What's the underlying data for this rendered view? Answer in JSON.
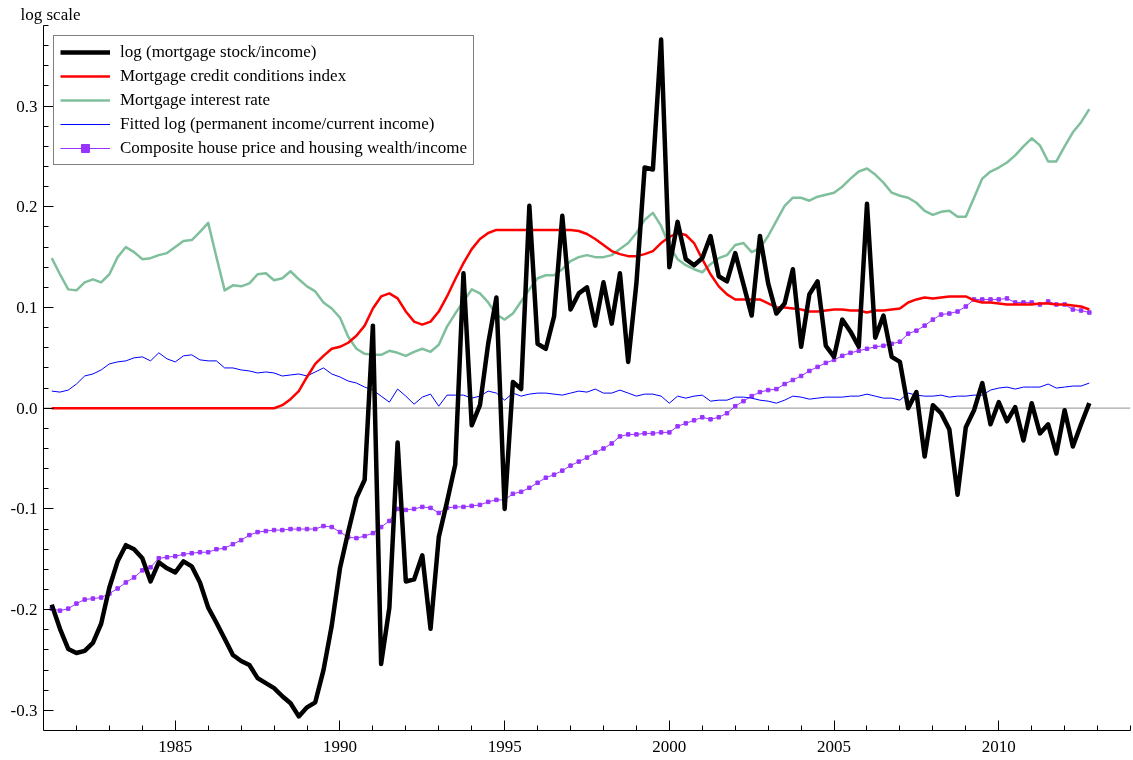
{
  "chart_data": {
    "type": "line",
    "ylabel": "log scale",
    "legend": "top left",
    "xlim": [
      1981,
      2014
    ],
    "ylim": [
      -0.32,
      0.38
    ],
    "xticks": [
      {
        "value": 1982,
        "label": null
      },
      {
        "value": 1983,
        "label": null
      },
      {
        "value": 1984,
        "label": null
      },
      1985,
      {
        "value": 1986,
        "label": null
      },
      {
        "value": 1987,
        "label": null
      },
      {
        "value": 1988,
        "label": null
      },
      {
        "value": 1989,
        "label": null
      },
      1990,
      {
        "value": 1991,
        "label": null
      },
      {
        "value": 1992,
        "label": null
      },
      {
        "value": 1993,
        "label": null
      },
      {
        "value": 1994,
        "label": null
      },
      1995,
      {
        "value": 1996,
        "label": null
      },
      {
        "value": 1997,
        "label": null
      },
      {
        "value": 1998,
        "label": null
      },
      {
        "value": 1999,
        "label": null
      },
      2000,
      {
        "value": 2001,
        "label": null
      },
      {
        "value": 2002,
        "label": null
      },
      {
        "value": 2003,
        "label": null
      },
      {
        "value": 2004,
        "label": null
      },
      2005,
      {
        "value": 2006,
        "label": null
      },
      {
        "value": 2007,
        "label": null
      },
      {
        "value": 2008,
        "label": null
      },
      {
        "value": 2009,
        "label": null
      },
      2010,
      {
        "value": 2011,
        "label": null
      },
      {
        "value": 2012,
        "label": null
      },
      {
        "value": 2013,
        "label": null
      },
      {
        "value": 2014,
        "label": null
      }
    ],
    "yticks": [
      -0.3,
      {
        "value": -0.28,
        "label": null
      },
      {
        "value": -0.26,
        "label": null
      },
      {
        "value": -0.24,
        "label": null
      },
      {
        "value": -0.22,
        "label": null
      },
      -0.2,
      {
        "value": -0.18,
        "label": null
      },
      {
        "value": -0.16,
        "label": null
      },
      {
        "value": -0.14,
        "label": null
      },
      {
        "value": -0.12,
        "label": null
      },
      -0.1,
      {
        "value": -0.08,
        "label": null
      },
      {
        "value": -0.06,
        "label": null
      },
      {
        "value": -0.04,
        "label": null
      },
      {
        "value": -0.02,
        "label": null
      },
      {
        "value": 0,
        "label": "0.0"
      },
      {
        "value": 0.02,
        "label": null
      },
      {
        "value": 0.04,
        "label": null
      },
      {
        "value": 0.06,
        "label": null
      },
      {
        "value": 0.08,
        "label": null
      },
      0.1,
      {
        "value": 0.12,
        "label": null
      },
      {
        "value": 0.14,
        "label": null
      },
      {
        "value": 0.16,
        "label": null
      },
      {
        "value": 0.18,
        "label": null
      },
      0.2,
      {
        "value": 0.22,
        "label": null
      },
      {
        "value": 0.24,
        "label": null
      },
      {
        "value": 0.26,
        "label": null
      },
      {
        "value": 0.28,
        "label": null
      },
      0.3,
      {
        "value": 0.32,
        "label": null
      },
      {
        "value": 0.34,
        "label": null
      },
      {
        "value": 0.36,
        "label": null
      },
      {
        "value": 0.38,
        "label": null
      }
    ],
    "ref_lines": [
      {
        "axis": "y",
        "value": 0,
        "color": "#a6a6a6"
      }
    ],
    "x": [
      1981.25,
      1981.5,
      1981.75,
      1982,
      1982.25,
      1982.5,
      1982.75,
      1983,
      1983.25,
      1983.5,
      1983.75,
      1984,
      1984.25,
      1984.5,
      1984.75,
      1985,
      1985.25,
      1985.5,
      1985.75,
      1986,
      1986.25,
      1986.5,
      1986.75,
      1987,
      1987.25,
      1987.5,
      1987.75,
      1988,
      1988.25,
      1988.5,
      1988.75,
      1989,
      1989.25,
      1989.5,
      1989.75,
      1990,
      1990.25,
      1990.5,
      1990.75,
      1991,
      1991.25,
      1991.5,
      1991.75,
      1992,
      1992.25,
      1992.5,
      1992.75,
      1993,
      1993.25,
      1993.5,
      1993.75,
      1994,
      1994.25,
      1994.5,
      1994.75,
      1995,
      1995.25,
      1995.5,
      1995.75,
      1996,
      1996.25,
      1996.5,
      1996.75,
      1997,
      1997.25,
      1997.5,
      1997.75,
      1998,
      1998.25,
      1998.5,
      1998.75,
      1999,
      1999.25,
      1999.5,
      1999.75,
      2000,
      2000.25,
      2000.5,
      2000.75,
      2001,
      2001.25,
      2001.5,
      2001.75,
      2002,
      2002.25,
      2002.5,
      2002.75,
      2003,
      2003.25,
      2003.5,
      2003.75,
      2004,
      2004.25,
      2004.5,
      2004.75,
      2005,
      2005.25,
      2005.5,
      2005.75,
      2006,
      2006.25,
      2006.5,
      2006.75,
      2007,
      2007.25,
      2007.5,
      2007.75,
      2008,
      2008.25,
      2008.5,
      2008.75,
      2009,
      2009.25,
      2009.5,
      2009.75,
      2010,
      2010.25,
      2010.5,
      2010.75,
      2011,
      2011.25,
      2011.5,
      2011.75,
      2012,
      2012.25,
      2012.5,
      2012.75
    ],
    "series": [
      {
        "name": "log (mortgage stock/income)",
        "color": "#000000",
        "values": [
          -0.195,
          -0.219,
          -0.239,
          -0.243,
          -0.241,
          -0.233,
          -0.214,
          -0.178,
          -0.152,
          -0.136,
          -0.14,
          -0.149,
          -0.172,
          -0.153,
          -0.159,
          -0.163,
          -0.152,
          -0.157,
          -0.173,
          -0.198,
          -0.213,
          -0.229,
          -0.245,
          -0.251,
          -0.255,
          -0.268,
          -0.273,
          -0.278,
          -0.286,
          -0.293,
          -0.306,
          -0.297,
          -0.292,
          -0.26,
          -0.216,
          -0.159,
          -0.123,
          -0.089,
          -0.071,
          0.082,
          -0.254,
          -0.198,
          -0.034,
          -0.172,
          -0.17,
          -0.146,
          -0.219,
          -0.128,
          -0.093,
          -0.056,
          0.134,
          -0.017,
          0.003,
          0.064,
          0.11,
          -0.1,
          0.026,
          0.019,
          0.201,
          0.064,
          0.059,
          0.091,
          0.191,
          0.098,
          0.114,
          0.12,
          0.082,
          0.125,
          0.084,
          0.134,
          0.046,
          0.124,
          0.239,
          0.237,
          0.366,
          0.14,
          0.185,
          0.148,
          0.142,
          0.149,
          0.171,
          0.131,
          0.126,
          0.154,
          0.123,
          0.092,
          0.171,
          0.124,
          0.094,
          0.104,
          0.138,
          0.061,
          0.113,
          0.126,
          0.062,
          0.051,
          0.088,
          0.076,
          0.061,
          0.203,
          0.07,
          0.092,
          0.051,
          0.046,
          0.0,
          0.016,
          -0.048,
          0.003,
          -0.005,
          -0.021,
          -0.086,
          -0.019,
          -0.002,
          0.025,
          -0.016,
          0.006,
          -0.013,
          0.001,
          -0.032,
          0.005,
          -0.025,
          -0.016,
          -0.045,
          -0.002,
          -0.038,
          -0.016,
          0.005
        ]
      },
      {
        "name": "Mortgage credit conditions index",
        "color": "#ff0000",
        "values": [
          0,
          0,
          0,
          0,
          0,
          0,
          0,
          0,
          0,
          0,
          0,
          0,
          0,
          0,
          0,
          0,
          0,
          0,
          0,
          0,
          0,
          0,
          0,
          0,
          0,
          0,
          0,
          0,
          0.003,
          0.009,
          0.017,
          0.031,
          0.044,
          0.052,
          0.059,
          0.061,
          0.065,
          0.072,
          0.082,
          0.099,
          0.111,
          0.114,
          0.109,
          0.096,
          0.086,
          0.083,
          0.086,
          0.096,
          0.111,
          0.128,
          0.144,
          0.158,
          0.168,
          0.174,
          0.177,
          0.177,
          0.177,
          0.177,
          0.177,
          0.177,
          0.177,
          0.177,
          0.177,
          0.177,
          0.176,
          0.173,
          0.168,
          0.162,
          0.156,
          0.153,
          0.151,
          0.151,
          0.153,
          0.156,
          0.164,
          0.17,
          0.174,
          0.172,
          0.164,
          0.148,
          0.133,
          0.121,
          0.113,
          0.108,
          0.108,
          0.108,
          0.108,
          0.104,
          0.1,
          0.1,
          0.099,
          0.098,
          0.096,
          0.096,
          0.097,
          0.098,
          0.098,
          0.097,
          0.097,
          0.095,
          0.097,
          0.097,
          0.098,
          0.099,
          0.105,
          0.108,
          0.11,
          0.109,
          0.11,
          0.111,
          0.111,
          0.111,
          0.107,
          0.105,
          0.105,
          0.104,
          0.103,
          0.103,
          0.103,
          0.103,
          0.104,
          0.104,
          0.103,
          0.103,
          0.102,
          0.101,
          0.098
        ]
      },
      {
        "name": "Mortgage interest rate",
        "color": "#7fbf9c",
        "values": [
          0.149,
          0.133,
          0.118,
          0.117,
          0.125,
          0.128,
          0.125,
          0.133,
          0.15,
          0.16,
          0.155,
          0.148,
          0.149,
          0.152,
          0.154,
          0.16,
          0.166,
          0.167,
          0.175,
          0.184,
          0.15,
          0.117,
          0.122,
          0.121,
          0.124,
          0.133,
          0.134,
          0.127,
          0.129,
          0.136,
          0.128,
          0.121,
          0.116,
          0.105,
          0.099,
          0.09,
          0.071,
          0.059,
          0.054,
          0.053,
          0.053,
          0.057,
          0.055,
          0.052,
          0.056,
          0.059,
          0.056,
          0.063,
          0.081,
          0.094,
          0.106,
          0.118,
          0.114,
          0.105,
          0.093,
          0.088,
          0.094,
          0.106,
          0.118,
          0.129,
          0.132,
          0.132,
          0.138,
          0.146,
          0.15,
          0.152,
          0.15,
          0.15,
          0.152,
          0.158,
          0.164,
          0.174,
          0.187,
          0.194,
          0.181,
          0.161,
          0.148,
          0.142,
          0.138,
          0.135,
          0.143,
          0.149,
          0.152,
          0.162,
          0.164,
          0.155,
          0.159,
          0.171,
          0.186,
          0.201,
          0.209,
          0.209,
          0.206,
          0.21,
          0.212,
          0.214,
          0.22,
          0.228,
          0.235,
          0.238,
          0.232,
          0.224,
          0.214,
          0.211,
          0.209,
          0.204,
          0.196,
          0.192,
          0.195,
          0.196,
          0.19,
          0.19,
          0.209,
          0.228,
          0.235,
          0.239,
          0.244,
          0.251,
          0.26,
          0.268,
          0.261,
          0.245,
          0.245,
          0.26,
          0.274,
          0.284,
          0.297
        ]
      },
      {
        "name": "Fitted log (permanent income/current income)",
        "color": "#0000ff",
        "values": [
          0.017,
          0.016,
          0.018,
          0.024,
          0.032,
          0.034,
          0.038,
          0.044,
          0.046,
          0.047,
          0.05,
          0.051,
          0.047,
          0.055,
          0.049,
          0.046,
          0.052,
          0.053,
          0.048,
          0.047,
          0.047,
          0.04,
          0.04,
          0.038,
          0.037,
          0.035,
          0.036,
          0.035,
          0.032,
          0.033,
          0.034,
          0.032,
          0.036,
          0.04,
          0.034,
          0.031,
          0.027,
          0.025,
          0.021,
          0.018,
          0.012,
          0.006,
          0.019,
          0.012,
          0.004,
          0.011,
          0.014,
          0.002,
          0.013,
          0.013,
          0.013,
          0.01,
          0.012,
          0.017,
          0.015,
          0.008,
          0.015,
          0.012,
          0.014,
          0.015,
          0.015,
          0.014,
          0.013,
          0.015,
          0.017,
          0.016,
          0.019,
          0.015,
          0.015,
          0.018,
          0.015,
          0.012,
          0.014,
          0.014,
          0.012,
          0.005,
          0.012,
          0.01,
          0.012,
          0.013,
          0.007,
          0.008,
          0.008,
          0.011,
          0.011,
          0.01,
          0.008,
          0.007,
          0.005,
          0.008,
          0.012,
          0.011,
          0.009,
          0.01,
          0.011,
          0.011,
          0.011,
          0.012,
          0.012,
          0.014,
          0.012,
          0.01,
          0.01,
          0.008,
          0.015,
          0.013,
          0.012,
          0.012,
          0.013,
          0.011,
          0.012,
          0.012,
          0.013,
          0.013,
          0.018,
          0.02,
          0.021,
          0.019,
          0.021,
          0.021,
          0.021,
          0.024,
          0.02,
          0.021,
          0.022,
          0.022,
          0.025
        ]
      },
      {
        "name": "Composite house price and housing wealth/income",
        "color": "#9933ff",
        "marker": "square",
        "values": [
          -0.199,
          -0.201,
          -0.199,
          -0.194,
          -0.19,
          -0.189,
          -0.188,
          -0.184,
          -0.179,
          -0.173,
          -0.168,
          -0.161,
          -0.158,
          -0.149,
          -0.148,
          -0.147,
          -0.145,
          -0.144,
          -0.143,
          -0.143,
          -0.14,
          -0.139,
          -0.135,
          -0.131,
          -0.126,
          -0.123,
          -0.122,
          -0.121,
          -0.121,
          -0.12,
          -0.12,
          -0.12,
          -0.12,
          -0.117,
          -0.118,
          -0.123,
          -0.128,
          -0.129,
          -0.127,
          -0.124,
          -0.118,
          -0.112,
          -0.1,
          -0.101,
          -0.1,
          -0.098,
          -0.099,
          -0.104,
          -0.099,
          -0.098,
          -0.098,
          -0.097,
          -0.096,
          -0.093,
          -0.091,
          -0.091,
          -0.085,
          -0.083,
          -0.079,
          -0.074,
          -0.069,
          -0.066,
          -0.062,
          -0.057,
          -0.053,
          -0.049,
          -0.044,
          -0.04,
          -0.035,
          -0.028,
          -0.026,
          -0.026,
          -0.025,
          -0.025,
          -0.024,
          -0.024,
          -0.018,
          -0.015,
          -0.012,
          -0.009,
          -0.011,
          -0.009,
          -0.005,
          0.002,
          0.007,
          0.012,
          0.016,
          0.018,
          0.019,
          0.024,
          0.028,
          0.032,
          0.037,
          0.041,
          0.045,
          0.048,
          0.052,
          0.055,
          0.057,
          0.059,
          0.061,
          0.062,
          0.064,
          0.066,
          0.074,
          0.077,
          0.082,
          0.088,
          0.093,
          0.094,
          0.096,
          0.101,
          0.108,
          0.108,
          0.108,
          0.108,
          0.109,
          0.105,
          0.105,
          0.105,
          0.103,
          0.106,
          0.103,
          0.103,
          0.098,
          0.097,
          0.095
        ]
      }
    ]
  }
}
